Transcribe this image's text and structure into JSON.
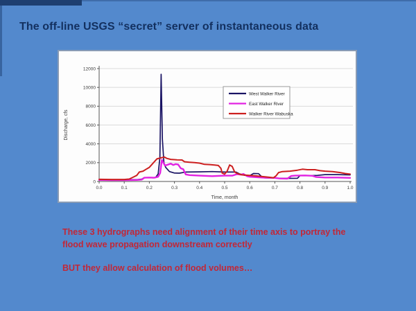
{
  "slide": {
    "title": "The off-line USGS “secret” server of instantaneous data",
    "notes": {
      "para1_line1": "These 3 hydrographs need alignment of their time axis to portray the",
      "para1_line2": "flood wave propagation downstream correctly",
      "para2": "BUT they allow calculation of flood volumes…"
    },
    "colors": {
      "background": "#5389cd",
      "title_text": "#13305f",
      "note_text": "#c22737",
      "accent_bar": "#1e3f70"
    }
  },
  "chart_data": {
    "type": "line",
    "title": "",
    "xlabel": "Time, month",
    "ylabel": "Discharge, cfs",
    "xlim": [
      0,
      1
    ],
    "ylim": [
      0,
      12000
    ],
    "x_ticks": [
      0,
      0.1,
      0.2,
      0.3,
      0.4,
      0.5,
      0.6,
      0.7,
      0.8,
      0.9,
      1.0
    ],
    "y_ticks": [
      0,
      2000,
      4000,
      6000,
      8000,
      10000,
      12000
    ],
    "grid": true,
    "legend_position": "inside upper right-center",
    "series": [
      {
        "name": "West Walker River",
        "color": "#1a1464",
        "width": 1.7,
        "points": [
          [
            0,
            200
          ],
          [
            0.04,
            180
          ],
          [
            0.08,
            180
          ],
          [
            0.12,
            190
          ],
          [
            0.15,
            200
          ],
          [
            0.17,
            250
          ],
          [
            0.18,
            420
          ],
          [
            0.2,
            420
          ],
          [
            0.215,
            380
          ],
          [
            0.225,
            420
          ],
          [
            0.235,
            800
          ],
          [
            0.242,
            2500
          ],
          [
            0.247,
            11400
          ],
          [
            0.252,
            4500
          ],
          [
            0.258,
            2000
          ],
          [
            0.265,
            1500
          ],
          [
            0.28,
            1050
          ],
          [
            0.3,
            900
          ],
          [
            0.32,
            880
          ],
          [
            0.345,
            1000
          ],
          [
            0.4,
            1020
          ],
          [
            0.45,
            1050
          ],
          [
            0.5,
            1000
          ],
          [
            0.545,
            1000
          ],
          [
            0.56,
            800
          ],
          [
            0.58,
            650
          ],
          [
            0.6,
            620
          ],
          [
            0.615,
            850
          ],
          [
            0.635,
            830
          ],
          [
            0.65,
            450
          ],
          [
            0.66,
            380
          ],
          [
            0.7,
            350
          ],
          [
            0.74,
            330
          ],
          [
            0.79,
            340
          ],
          [
            0.8,
            620
          ],
          [
            0.84,
            620
          ],
          [
            0.87,
            650
          ],
          [
            0.9,
            730
          ],
          [
            0.95,
            730
          ],
          [
            1,
            700
          ]
        ]
      },
      {
        "name": "East Walker River",
        "color": "#e222e2",
        "width": 2.4,
        "points": [
          [
            0,
            160
          ],
          [
            0.05,
            150
          ],
          [
            0.1,
            150
          ],
          [
            0.15,
            160
          ],
          [
            0.17,
            200
          ],
          [
            0.18,
            400
          ],
          [
            0.2,
            420
          ],
          [
            0.22,
            400
          ],
          [
            0.235,
            500
          ],
          [
            0.243,
            900
          ],
          [
            0.25,
            2300
          ],
          [
            0.255,
            2050
          ],
          [
            0.262,
            1700
          ],
          [
            0.27,
            1750
          ],
          [
            0.285,
            1900
          ],
          [
            0.295,
            1750
          ],
          [
            0.305,
            1850
          ],
          [
            0.315,
            1800
          ],
          [
            0.325,
            1400
          ],
          [
            0.335,
            1300
          ],
          [
            0.345,
            750
          ],
          [
            0.36,
            680
          ],
          [
            0.4,
            620
          ],
          [
            0.45,
            570
          ],
          [
            0.5,
            620
          ],
          [
            0.53,
            620
          ],
          [
            0.55,
            780
          ],
          [
            0.565,
            720
          ],
          [
            0.575,
            800
          ],
          [
            0.59,
            550
          ],
          [
            0.6,
            500
          ],
          [
            0.63,
            450
          ],
          [
            0.66,
            400
          ],
          [
            0.7,
            380
          ],
          [
            0.72,
            320
          ],
          [
            0.75,
            300
          ],
          [
            0.765,
            580
          ],
          [
            0.78,
            620
          ],
          [
            0.82,
            640
          ],
          [
            0.85,
            600
          ],
          [
            0.865,
            470
          ],
          [
            0.9,
            420
          ],
          [
            0.95,
            420
          ],
          [
            1,
            380
          ]
        ]
      },
      {
        "name": "Walker River Wabuska",
        "color": "#cc1f1f",
        "width": 2.0,
        "points": [
          [
            0,
            230
          ],
          [
            0.05,
            210
          ],
          [
            0.1,
            210
          ],
          [
            0.12,
            260
          ],
          [
            0.135,
            450
          ],
          [
            0.15,
            650
          ],
          [
            0.16,
            1000
          ],
          [
            0.175,
            1100
          ],
          [
            0.19,
            1350
          ],
          [
            0.2,
            1500
          ],
          [
            0.21,
            1800
          ],
          [
            0.22,
            2100
          ],
          [
            0.23,
            2400
          ],
          [
            0.245,
            2500
          ],
          [
            0.26,
            2600
          ],
          [
            0.27,
            2450
          ],
          [
            0.285,
            2350
          ],
          [
            0.31,
            2300
          ],
          [
            0.33,
            2280
          ],
          [
            0.34,
            2100
          ],
          [
            0.36,
            2050
          ],
          [
            0.38,
            2000
          ],
          [
            0.4,
            1950
          ],
          [
            0.42,
            1820
          ],
          [
            0.44,
            1800
          ],
          [
            0.46,
            1750
          ],
          [
            0.475,
            1700
          ],
          [
            0.485,
            1400
          ],
          [
            0.49,
            900
          ],
          [
            0.5,
            780
          ],
          [
            0.51,
            1100
          ],
          [
            0.52,
            1750
          ],
          [
            0.53,
            1600
          ],
          [
            0.54,
            1000
          ],
          [
            0.55,
            850
          ],
          [
            0.57,
            700
          ],
          [
            0.6,
            640
          ],
          [
            0.63,
            580
          ],
          [
            0.65,
            520
          ],
          [
            0.68,
            440
          ],
          [
            0.695,
            400
          ],
          [
            0.705,
            600
          ],
          [
            0.715,
            950
          ],
          [
            0.73,
            1050
          ],
          [
            0.76,
            1100
          ],
          [
            0.79,
            1200
          ],
          [
            0.81,
            1300
          ],
          [
            0.83,
            1250
          ],
          [
            0.86,
            1250
          ],
          [
            0.88,
            1150
          ],
          [
            0.9,
            1100
          ],
          [
            0.93,
            1050
          ],
          [
            0.96,
            950
          ],
          [
            0.98,
            850
          ],
          [
            1,
            780
          ]
        ]
      }
    ]
  }
}
